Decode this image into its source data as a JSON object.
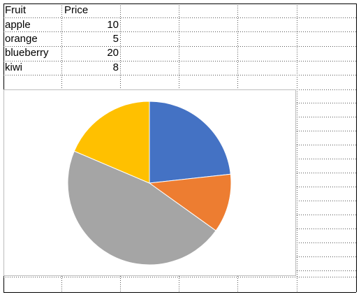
{
  "sheet": {
    "headers": [
      "Fruit",
      "Price"
    ],
    "rows": [
      {
        "fruit": "apple",
        "price": "10"
      },
      {
        "fruit": "orange",
        "price": "5"
      },
      {
        "fruit": "blueberry",
        "price": "20"
      },
      {
        "fruit": "kiwi",
        "price": "8"
      }
    ]
  },
  "chart_data": {
    "type": "pie",
    "categories": [
      "apple",
      "orange",
      "blueberry",
      "kiwi"
    ],
    "values": [
      10,
      5,
      20,
      8
    ],
    "colors": [
      "#4472C4",
      "#ED7D31",
      "#A5A5A5",
      "#FFC000"
    ],
    "start_angle_deg": 0,
    "direction": "clockwise"
  }
}
